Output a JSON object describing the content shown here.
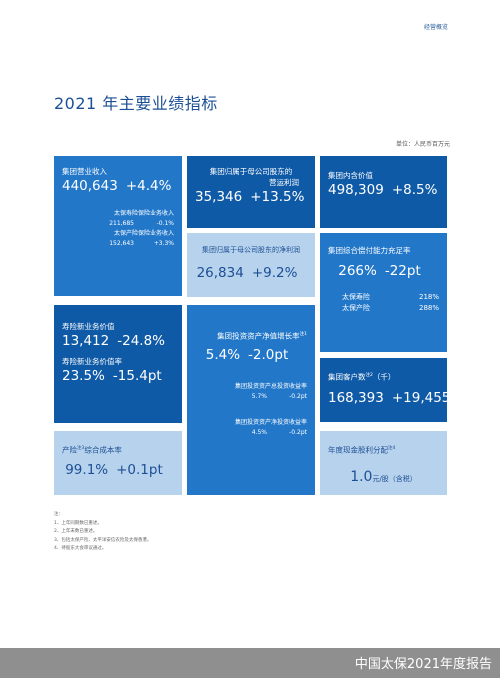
{
  "section_label": "经营概览",
  "page_title": "2021 年主要业绩指标",
  "unit": "单位：人民币百万元",
  "tiles": {
    "group_revenue": {
      "label": "集团营业收入",
      "value": "440,643",
      "change": "+4.4%",
      "sub": [
        {
          "label": "太保寿险保险业务收入",
          "value": "211,685",
          "change": "-0.1%"
        },
        {
          "label": "太保产险保险业务收入",
          "value": "152,643",
          "change": "+3.3%"
        }
      ]
    },
    "operating_profit": {
      "label_line1": "集团归属于母公司股东的",
      "label_line2": "营运利润",
      "value": "35,346",
      "change": "+13.5%"
    },
    "embedded_value": {
      "label": "集团内含价值",
      "value": "498,309",
      "change": "+8.5%"
    },
    "net_profit": {
      "label": "集团归属于母公司股东的净利润",
      "value": "26,834",
      "change": "+9.2%"
    },
    "solvency": {
      "label": "集团综合偿付能力充足率",
      "value": "266%",
      "change": "-22pt",
      "sub": [
        {
          "label": "太保寿险",
          "value": "218%"
        },
        {
          "label": "太保产险",
          "value": "288%"
        }
      ]
    },
    "nbv": {
      "label": "寿险新业务价值",
      "value": "13,412",
      "change": "-24.8%",
      "label2": "寿险新业务价值率",
      "value2": "23.5%",
      "change2": "-15.4pt"
    },
    "investment": {
      "label": "集团投资资产净值增长率",
      "note": "注1",
      "value": "5.4%",
      "change": "-2.0pt",
      "total_label": "集团投资资产总投资收益率",
      "total_value": "5.7%",
      "total_change": "-0.2pt",
      "net_label": "集团投资资产净投资收益率",
      "net_value": "4.5%",
      "net_change": "-0.2pt"
    },
    "customers": {
      "label": "集团客户数",
      "note": "注2",
      "unit": "（千）",
      "value": "168,393",
      "change": "+19,455"
    },
    "combined_ratio": {
      "label_pre": "产险",
      "note": "注3",
      "label_post": "综合成本率",
      "value": "99.1%",
      "change": "+0.1pt"
    },
    "dividend": {
      "label": "年度现金股利分配",
      "note": "注4",
      "value": "1.0",
      "unit": "元/股（含税）"
    }
  },
  "notes": {
    "title": "注：",
    "items": [
      "1、上年同期数已重述。",
      "2、上年末数已重述。",
      "3、包括太保产险、太平洋安信农险及太保香港。",
      "4、待股东大会审议通过。"
    ]
  },
  "footer": {
    "title": "中国太保2021年度报告"
  },
  "colors": {
    "dark_tile": "#0f5aa7",
    "mid_tile": "#2277c9",
    "light_tile": "#b7d2ec",
    "title": "#1c4f95",
    "footer": "#8f8f8f"
  }
}
